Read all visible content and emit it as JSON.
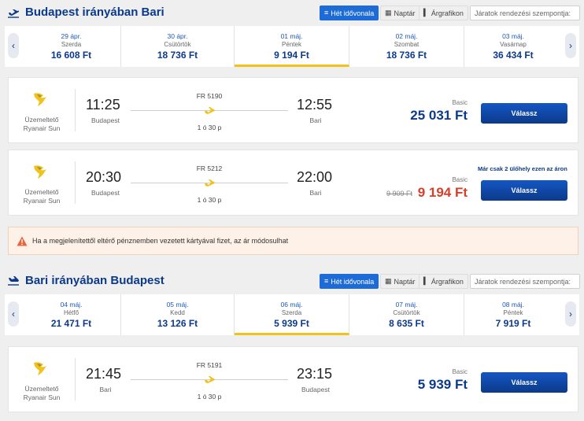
{
  "outbound": {
    "title": "Budapest irányában Bari",
    "view_buttons": [
      {
        "label": "Hét idővonala",
        "icon": "list-icon"
      },
      {
        "label": "Naptár",
        "icon": "calendar-icon"
      },
      {
        "label": "Árgrafikon",
        "icon": "bar-chart-icon"
      }
    ],
    "sort_label": "Járatok rendezési szempontja:",
    "dates": [
      {
        "date": "29 ápr.",
        "day": "Szerda",
        "price": "16 608 Ft"
      },
      {
        "date": "30 ápr.",
        "day": "Csütörtök",
        "price": "18 736 Ft"
      },
      {
        "date": "01 máj.",
        "day": "Péntek",
        "price": "9 194 Ft",
        "selected": true
      },
      {
        "date": "02 máj.",
        "day": "Szombat",
        "price": "18 736 Ft"
      },
      {
        "date": "03 máj.",
        "day": "Vasárnap",
        "price": "36 434 Ft"
      }
    ],
    "flights": [
      {
        "operator_label": "Üzemeltető",
        "operator": "Ryanair Sun",
        "flight_no": "FR 5190",
        "dep_time": "11:25",
        "dep_city": "Budapest",
        "arr_time": "12:55",
        "arr_city": "Bari",
        "duration": "1 ó 30 p",
        "fare": "Basic",
        "price": "25 031 Ft",
        "button": "Válassz"
      },
      {
        "operator_label": "Üzemeltető",
        "operator": "Ryanair Sun",
        "flight_no": "FR 5212",
        "dep_time": "20:30",
        "dep_city": "Budapest",
        "arr_time": "22:00",
        "arr_city": "Bari",
        "duration": "1 ó 30 p",
        "fare": "Basic",
        "old_price": "9 909 Ft",
        "price": "9 194 Ft",
        "seats_note": "Már csak 2 ülőhely ezen az áron",
        "button": "Válassz"
      }
    ]
  },
  "warning": {
    "text": "Ha a megjelenítettől eltérő pénznemben vezetett kártyával fizet, az ár módosulhat"
  },
  "inbound": {
    "title": "Bari irányában Budapest",
    "view_buttons": [
      {
        "label": "Hét idővonala",
        "icon": "list-icon"
      },
      {
        "label": "Naptár",
        "icon": "calendar-icon"
      },
      {
        "label": "Árgrafikon",
        "icon": "bar-chart-icon"
      }
    ],
    "sort_label": "Járatok rendezési szempontja:",
    "dates": [
      {
        "date": "04 máj.",
        "day": "Hétfő",
        "price": "21 471 Ft"
      },
      {
        "date": "05 máj.",
        "day": "Kedd",
        "price": "13 126 Ft"
      },
      {
        "date": "06 máj.",
        "day": "Szerda",
        "price": "5 939 Ft",
        "selected": true
      },
      {
        "date": "07 máj.",
        "day": "Csütörtök",
        "price": "8 635 Ft"
      },
      {
        "date": "08 máj.",
        "day": "Péntek",
        "price": "7 919 Ft"
      }
    ],
    "flights": [
      {
        "operator_label": "Üzemeltető",
        "operator": "Ryanair Sun",
        "flight_no": "FR 5191",
        "dep_time": "21:45",
        "dep_city": "Bari",
        "arr_time": "23:15",
        "arr_city": "Budapest",
        "duration": "1 ó 30 p",
        "fare": "Basic",
        "price": "5 939 Ft",
        "button": "Válassz"
      }
    ]
  },
  "colors": {
    "accent": "#0b3a8a",
    "button": "#1d6bd6",
    "selected_underline": "#f0c21a",
    "promo_price": "#d6402a"
  }
}
